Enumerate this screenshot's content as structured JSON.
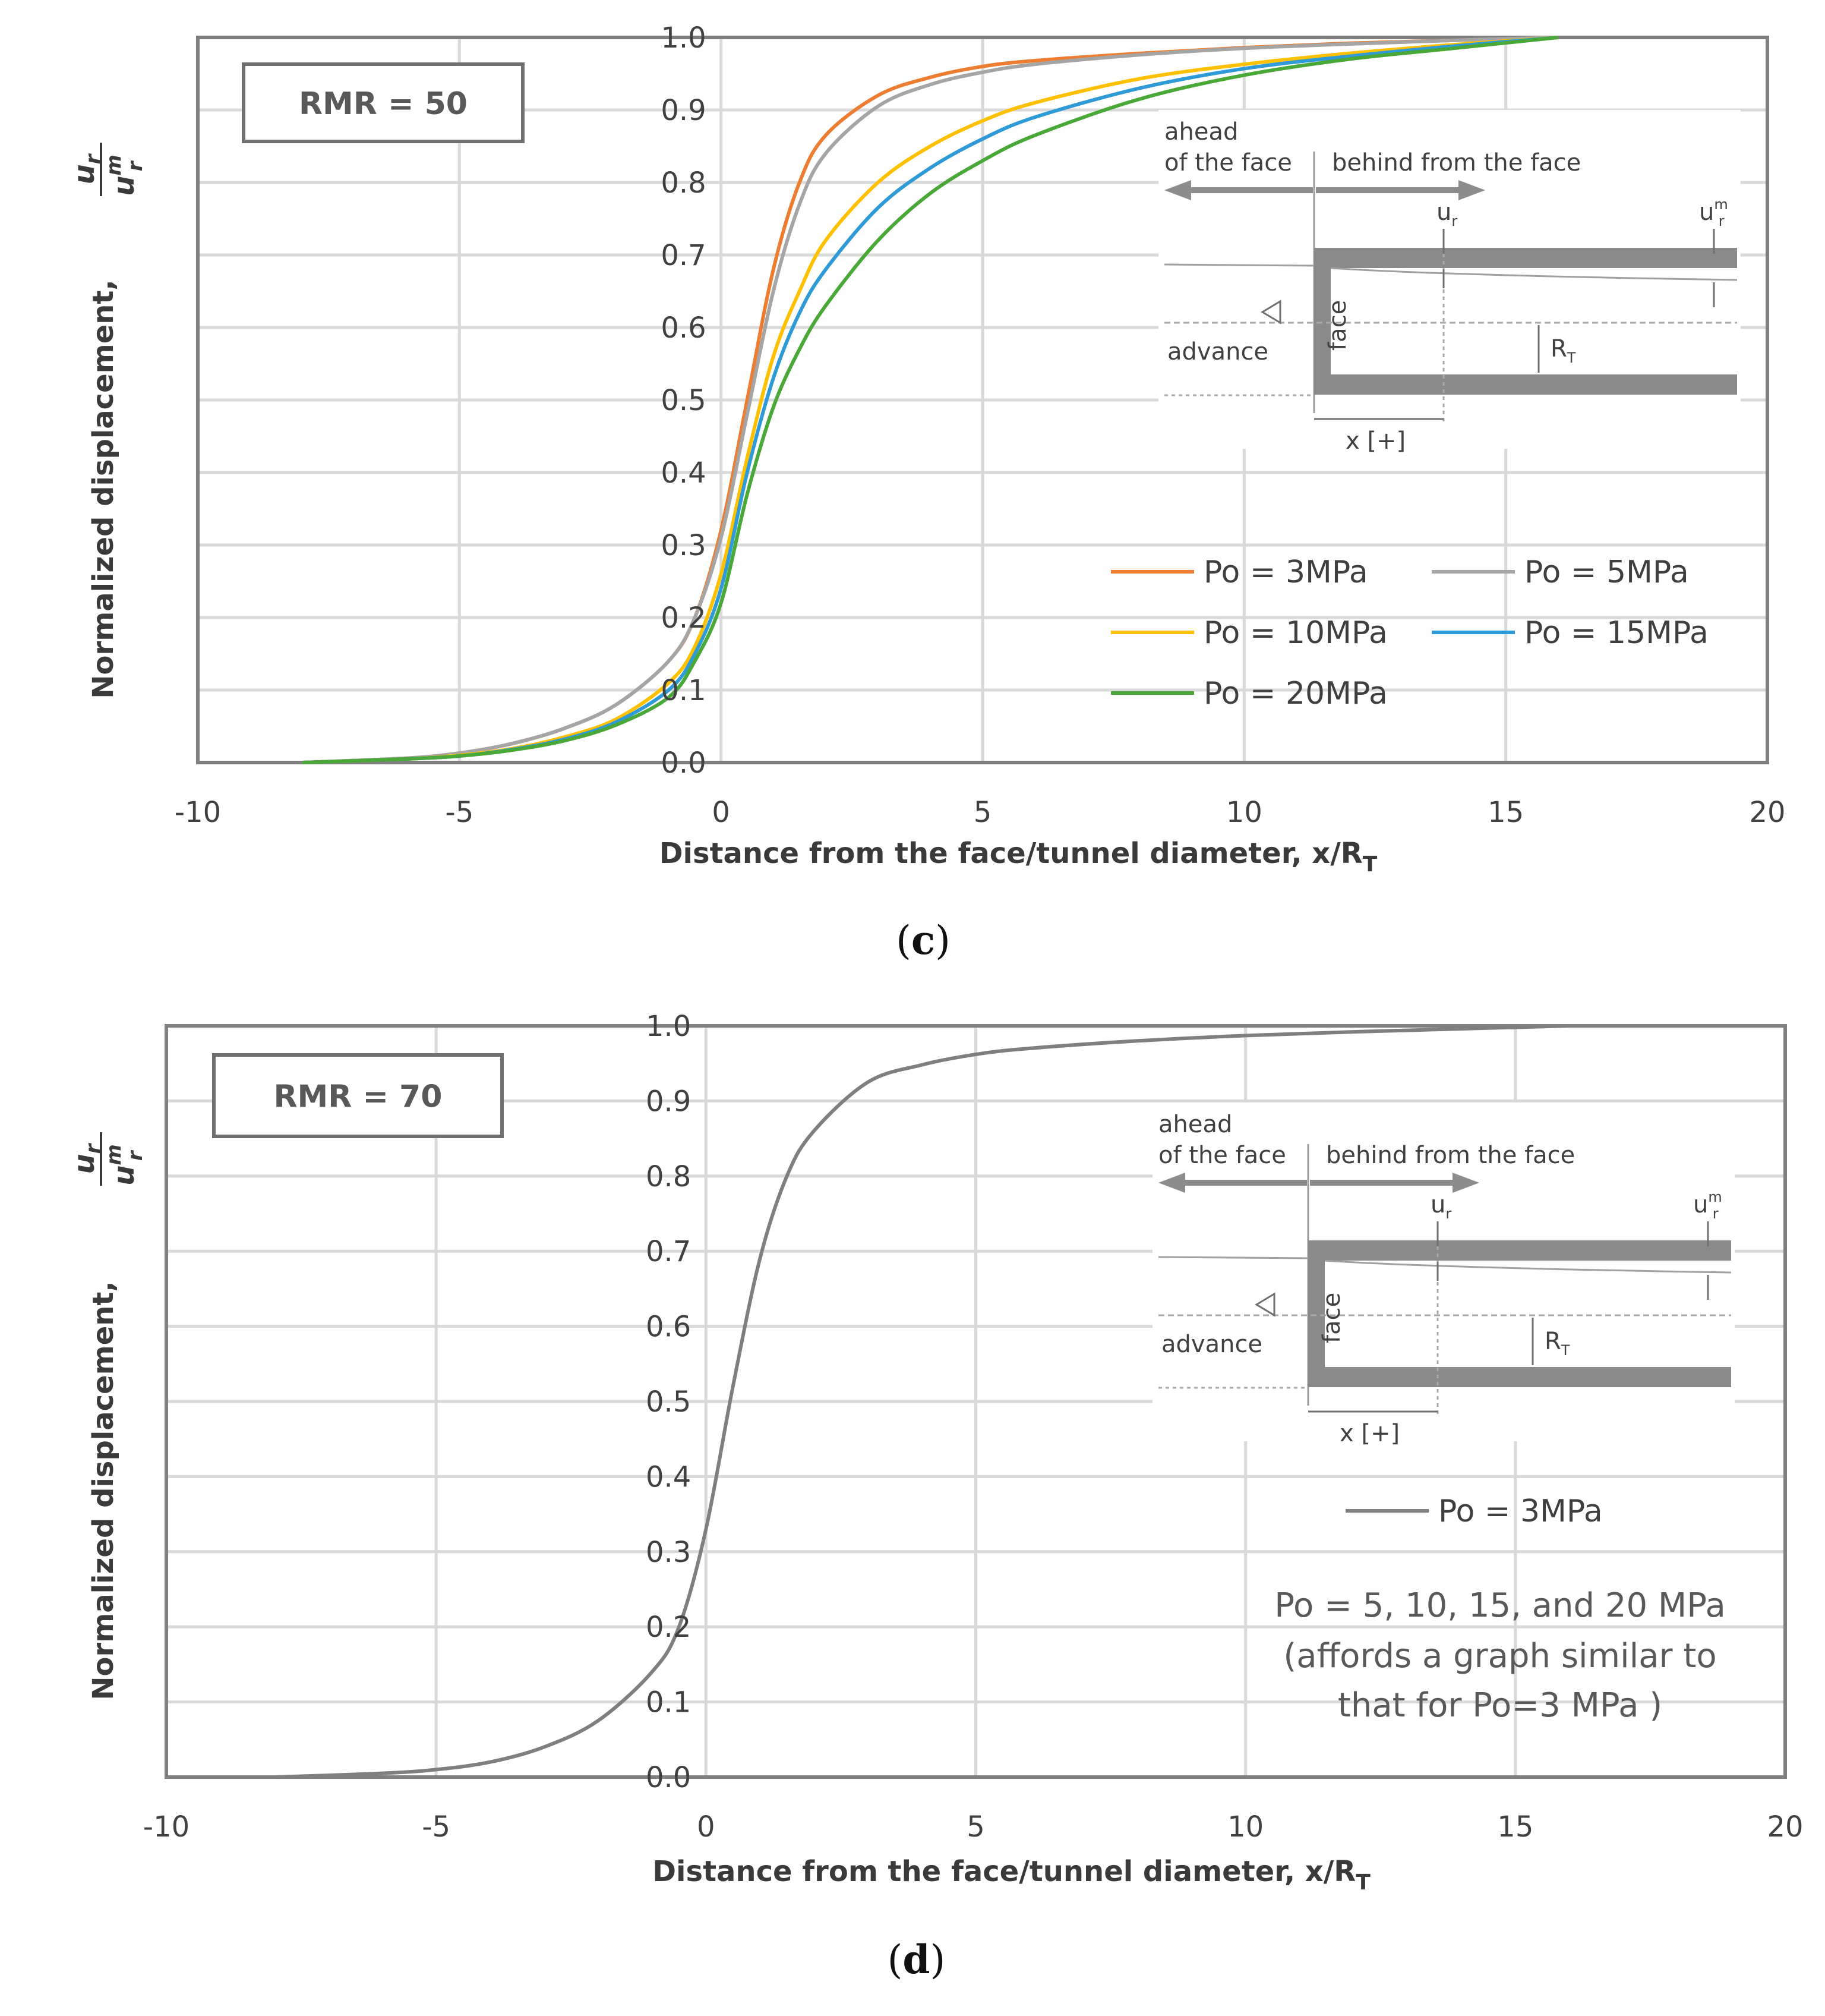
{
  "chart_data": [
    {
      "type": "line",
      "panel_label": "c",
      "box_label": "RMR = 50",
      "xlabel": "Distance from the face/tunnel diameter,",
      "xlabel_symbol": "x/R",
      "xlabel_sub": "T",
      "ylabel": "Normalized displacement,",
      "ylabel_frac_num": "u",
      "ylabel_frac_num_sub": "r",
      "ylabel_frac_den": "u",
      "ylabel_frac_den_sup": "m",
      "ylabel_frac_den_sub": "r",
      "xlim": [
        -10,
        20
      ],
      "ylim": [
        0,
        1
      ],
      "xticks": [
        -10,
        -5,
        0,
        5,
        10,
        15,
        20
      ],
      "xtick_labels": [
        "-10",
        "-5",
        "0",
        "5",
        "10",
        "15",
        "20"
      ],
      "yticks": [
        0,
        0.1,
        0.2,
        0.3,
        0.4,
        0.5,
        0.6,
        0.7,
        0.8,
        0.9,
        1.0
      ],
      "ytick_labels": [
        "0.0",
        "0.1",
        "0.2",
        "0.3",
        "0.4",
        "0.5",
        "0.6",
        "0.7",
        "0.8",
        "0.9",
        "1.0"
      ],
      "grid": true,
      "legend_position": "lower-right",
      "series": [
        {
          "name": "Po = 3MPa",
          "color": "#ED7D31",
          "x": [
            -8,
            -6,
            -5,
            -4,
            -3,
            -2,
            -1,
            -0.5,
            0,
            0.5,
            1,
            1.5,
            2,
            3,
            4,
            5,
            6,
            8,
            10,
            12,
            14,
            16
          ],
          "y": [
            0,
            0.006,
            0.013,
            0.026,
            0.047,
            0.08,
            0.14,
            0.2,
            0.32,
            0.5,
            0.68,
            0.8,
            0.865,
            0.92,
            0.945,
            0.96,
            0.968,
            0.978,
            0.986,
            0.992,
            0.996,
            1.0
          ]
        },
        {
          "name": "Po = 5MPa",
          "color": "#A5A5A5",
          "x": [
            -8,
            -6,
            -5,
            -4,
            -3,
            -2,
            -1,
            -0.5,
            0,
            0.5,
            1,
            1.5,
            2,
            3,
            4,
            5,
            6,
            8,
            10,
            12,
            14,
            16
          ],
          "y": [
            0,
            0.006,
            0.013,
            0.026,
            0.047,
            0.08,
            0.14,
            0.2,
            0.31,
            0.48,
            0.65,
            0.77,
            0.84,
            0.905,
            0.935,
            0.952,
            0.963,
            0.976,
            0.985,
            0.991,
            0.996,
            1.0
          ]
        },
        {
          "name": "Po = 10MPa",
          "color": "#FFC000",
          "x": [
            -8,
            -6,
            -5,
            -4,
            -3,
            -2,
            -1,
            -0.5,
            0,
            0.5,
            1,
            1.5,
            2,
            3,
            4,
            5,
            6,
            8,
            10,
            12,
            14,
            16
          ],
          "y": [
            0,
            0.005,
            0.01,
            0.019,
            0.035,
            0.06,
            0.11,
            0.16,
            0.26,
            0.42,
            0.56,
            0.65,
            0.72,
            0.8,
            0.85,
            0.885,
            0.91,
            0.943,
            0.963,
            0.978,
            0.99,
            1.0
          ]
        },
        {
          "name": "Po = 15MPa",
          "color": "#2E9AD6",
          "x": [
            -8,
            -6,
            -5,
            -4,
            -3,
            -2,
            -1,
            -0.5,
            0,
            0.5,
            1,
            1.5,
            2,
            3,
            4,
            5,
            6,
            8,
            10,
            12,
            14,
            16
          ],
          "y": [
            0,
            0.005,
            0.009,
            0.018,
            0.032,
            0.056,
            0.1,
            0.15,
            0.24,
            0.4,
            0.53,
            0.62,
            0.68,
            0.765,
            0.82,
            0.86,
            0.89,
            0.93,
            0.957,
            0.974,
            0.988,
            1.0
          ]
        },
        {
          "name": "Po = 20MPa",
          "color": "#4AA839",
          "x": [
            -8,
            -6,
            -5,
            -4,
            -3,
            -2,
            -1,
            -0.5,
            0,
            0.5,
            1,
            1.5,
            2,
            3,
            4,
            5,
            6,
            8,
            10,
            12,
            14,
            16
          ],
          "y": [
            0,
            0.005,
            0.009,
            0.017,
            0.03,
            0.052,
            0.09,
            0.14,
            0.22,
            0.37,
            0.49,
            0.57,
            0.63,
            0.72,
            0.785,
            0.83,
            0.865,
            0.915,
            0.948,
            0.97,
            0.985,
            1.0
          ]
        }
      ],
      "legend_entries": [
        "Po = 3MPa",
        "Po = 5MPa",
        "Po = 10MPa",
        "Po = 15MPa",
        "Po = 20MPa"
      ],
      "inset": {
        "ahead_label_1": "ahead",
        "ahead_label_2": "of the face",
        "behind_label": "behind from the face",
        "ur": "u",
        "ur_sub": "r",
        "urm": "u",
        "urm_sup": "m",
        "urm_sub": "r",
        "advance": "advance",
        "face": "face",
        "rt": "R",
        "rt_sub": "T",
        "x_label": "x [+]"
      }
    },
    {
      "type": "line",
      "panel_label": "d",
      "box_label": "RMR = 70",
      "xlabel": "Distance from the face/tunnel diameter,",
      "xlabel_symbol": "x/R",
      "xlabel_sub": "T",
      "ylabel": "Normalized displacement,",
      "ylabel_frac_num": "u",
      "ylabel_frac_num_sub": "r",
      "ylabel_frac_den": "u",
      "ylabel_frac_den_sup": "m",
      "ylabel_frac_den_sub": "r",
      "xlim": [
        -10,
        20
      ],
      "ylim": [
        0,
        1
      ],
      "xticks": [
        -10,
        -5,
        0,
        5,
        10,
        15,
        20
      ],
      "xtick_labels": [
        "-10",
        "-5",
        "0",
        "5",
        "10",
        "15",
        "20"
      ],
      "yticks": [
        0,
        0.1,
        0.2,
        0.3,
        0.4,
        0.5,
        0.6,
        0.7,
        0.8,
        0.9,
        1.0
      ],
      "ytick_labels": [
        "0.0",
        "0.1",
        "0.2",
        "0.3",
        "0.4",
        "0.5",
        "0.6",
        "0.7",
        "0.8",
        "0.9",
        "1.0"
      ],
      "grid": true,
      "legend_position": "right",
      "series": [
        {
          "name": "Po = 3MPa",
          "color": "#7F7F7F",
          "x": [
            -8,
            -6,
            -5,
            -4,
            -3,
            -2,
            -1,
            -0.5,
            0,
            0.5,
            1,
            1.5,
            2,
            3,
            4,
            5,
            6,
            8,
            10,
            12,
            14,
            16
          ],
          "y": [
            0,
            0.005,
            0.01,
            0.02,
            0.04,
            0.075,
            0.14,
            0.2,
            0.33,
            0.52,
            0.69,
            0.8,
            0.86,
            0.925,
            0.948,
            0.962,
            0.97,
            0.98,
            0.987,
            0.992,
            0.996,
            1.0
          ]
        }
      ],
      "legend_entries": [
        "Po = 3MPa"
      ],
      "note_lines": [
        "Po = 5, 10, 15, and 20 MPa",
        "(affords a graph similar to",
        "that for Po=3 MPa )"
      ],
      "inset": {
        "ahead_label_1": "ahead",
        "ahead_label_2": "of the face",
        "behind_label": "behind from the face",
        "ur": "u",
        "ur_sub": "r",
        "urm": "u",
        "urm_sup": "m",
        "urm_sub": "r",
        "advance": "advance",
        "face": "face",
        "rt": "R",
        "rt_sub": "T",
        "x_label": "x [+]"
      }
    }
  ]
}
